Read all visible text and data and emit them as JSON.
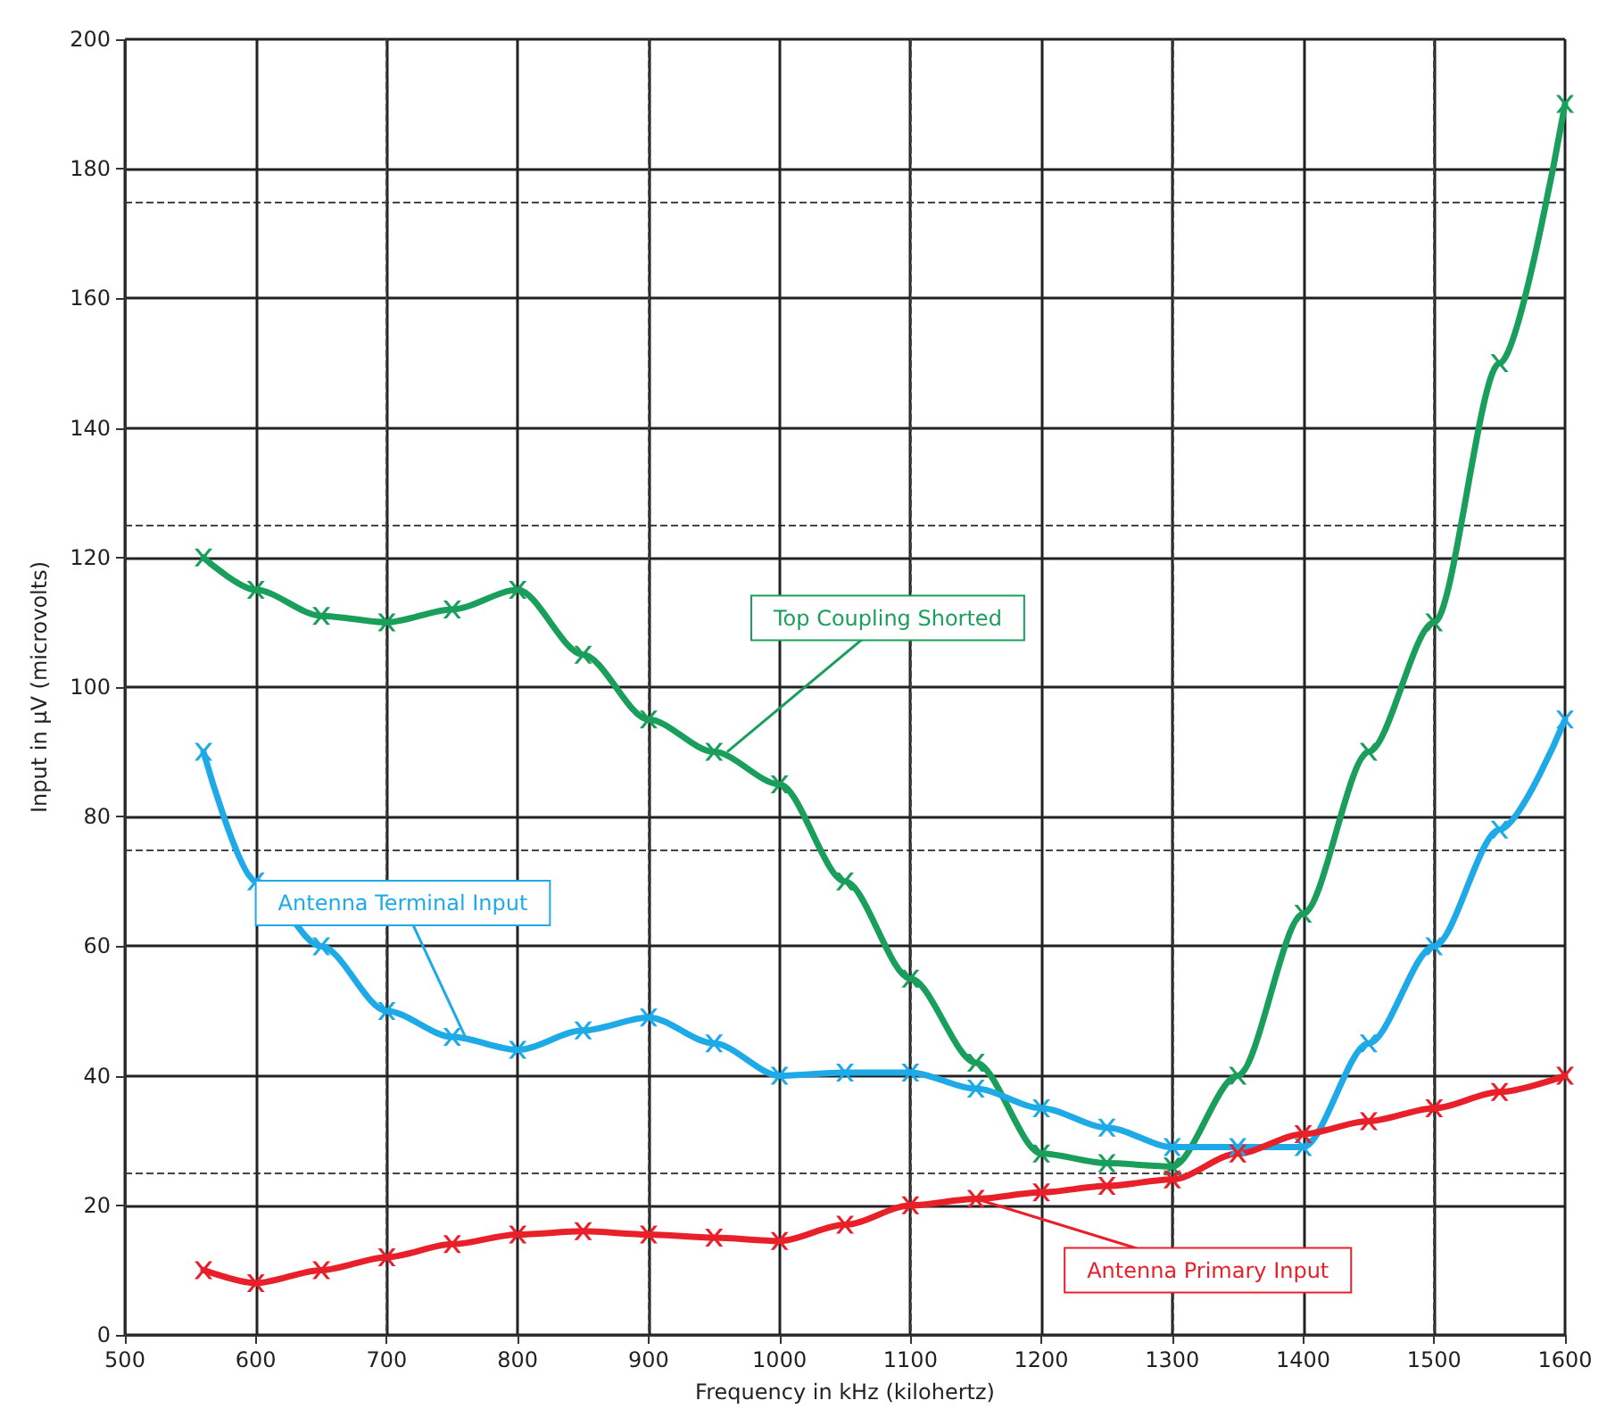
{
  "chart_data": {
    "type": "line",
    "xlabel": "Frequency in kHz (kilohertz)",
    "ylabel": "Input in µV (microvolts)",
    "x": [
      560,
      600,
      650,
      700,
      750,
      800,
      850,
      900,
      950,
      1000,
      1050,
      1100,
      1150,
      1200,
      1250,
      1300,
      1350,
      1400,
      1450,
      1500,
      1550,
      1600
    ],
    "series": [
      {
        "color": "#1a9e5c",
        "values": [
          120,
          115,
          111,
          110,
          112,
          115,
          105,
          95,
          90,
          85,
          70,
          55,
          42,
          28,
          26.5,
          26,
          40,
          65,
          90,
          110,
          150,
          190
        ]
      },
      {
        "color": "#1eaae7",
        "values": [
          90,
          70,
          60,
          50,
          46,
          44,
          47,
          49,
          45,
          40,
          40.5,
          40.5,
          38,
          35,
          32,
          29,
          29,
          29,
          45,
          60,
          78,
          95
        ]
      },
      {
        "color": "#e8202a",
        "values": [
          10,
          8,
          10,
          12,
          14,
          15.5,
          16,
          15.5,
          15,
          14.5,
          17,
          20,
          21,
          22,
          23,
          24,
          28,
          31,
          33,
          35,
          37.5,
          40
        ]
      }
    ],
    "annotations": [
      {
        "text": "Top Coupling Shorted",
        "x": 960,
        "y": 90
      },
      {
        "text": "Antenna Terminal Input",
        "x": 760,
        "y": 46
      },
      {
        "text": "Antenna Primary Input",
        "x": 1150,
        "y": 21
      }
    ],
    "xlim": [
      500,
      1600
    ],
    "xticks": [
      500,
      600,
      700,
      800,
      900,
      1000,
      1100,
      1200,
      1300,
      1400,
      1500,
      1600
    ],
    "ylim": [
      0,
      200
    ],
    "yticks": [
      0,
      20,
      40,
      60,
      80,
      100,
      120,
      140,
      160,
      180,
      200
    ],
    "grid": true,
    "marker": "cross",
    "line_style": "solid"
  }
}
